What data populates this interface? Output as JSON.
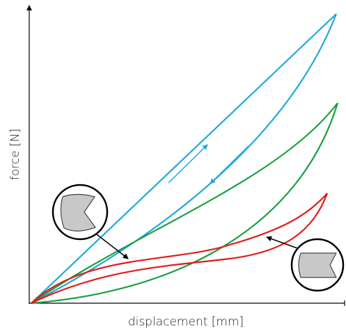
{
  "axes": {
    "y_label": "force [N]",
    "x_label": "displacement [mm]"
  }
}
